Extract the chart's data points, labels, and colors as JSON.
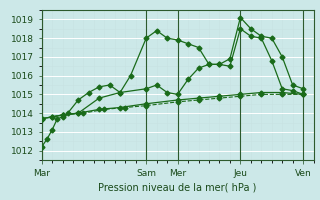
{
  "title": "",
  "xlabel": "Pression niveau de la mer( hPa )",
  "ylabel": "",
  "bg_color": "#cce8e8",
  "grid_color": "#b8dada",
  "grid_color_major": "#aacece",
  "line_color": "#1a6b1a",
  "ylim": [
    1011.5,
    1019.5
  ],
  "yticks": [
    1012,
    1013,
    1014,
    1015,
    1016,
    1017,
    1018,
    1019
  ],
  "day_labels": [
    "Mar",
    "Sam",
    "Mer",
    "Jeu",
    "Ven"
  ],
  "day_positions": [
    0,
    40,
    52,
    76,
    100
  ],
  "line1": {
    "x": [
      0,
      2,
      4,
      6,
      8,
      10,
      14,
      18,
      22,
      26,
      30,
      34,
      40,
      44,
      48,
      52,
      56,
      60,
      64,
      68,
      72,
      76,
      80,
      84,
      88,
      92,
      96,
      100
    ],
    "y": [
      1012.2,
      1012.6,
      1013.1,
      1013.7,
      1013.8,
      1014.0,
      1014.7,
      1015.1,
      1015.4,
      1015.5,
      1015.1,
      1016.0,
      1018.0,
      1018.4,
      1018.0,
      1017.9,
      1017.7,
      1017.5,
      1016.6,
      1016.6,
      1016.9,
      1019.1,
      1018.5,
      1018.1,
      1018.0,
      1017.0,
      1015.5,
      1015.3
    ]
  },
  "line2": {
    "x": [
      0,
      4,
      8,
      14,
      22,
      30,
      40,
      44,
      48,
      52,
      56,
      60,
      64,
      68,
      72,
      76,
      80,
      84,
      88,
      92,
      96,
      100
    ],
    "y": [
      1013.7,
      1013.8,
      1013.9,
      1014.0,
      1014.8,
      1015.1,
      1015.3,
      1015.5,
      1015.1,
      1015.0,
      1015.8,
      1016.4,
      1016.6,
      1016.6,
      1016.5,
      1018.5,
      1018.1,
      1018.0,
      1016.8,
      1015.3,
      1015.2,
      1015.0
    ]
  },
  "line3": {
    "x": [
      0,
      4,
      8,
      14,
      22,
      30,
      40,
      52,
      60,
      68,
      76,
      84,
      92,
      100
    ],
    "y": [
      1013.7,
      1013.8,
      1013.9,
      1014.0,
      1014.2,
      1014.3,
      1014.5,
      1014.7,
      1014.8,
      1014.9,
      1015.0,
      1015.1,
      1015.1,
      1015.0
    ]
  },
  "line4_dashed": {
    "x": [
      0,
      8,
      16,
      24,
      32,
      40,
      52,
      60,
      68,
      76,
      84,
      92,
      100
    ],
    "y": [
      1013.7,
      1013.9,
      1014.0,
      1014.2,
      1014.3,
      1014.4,
      1014.6,
      1014.7,
      1014.8,
      1014.9,
      1015.0,
      1015.0,
      1015.0
    ]
  }
}
